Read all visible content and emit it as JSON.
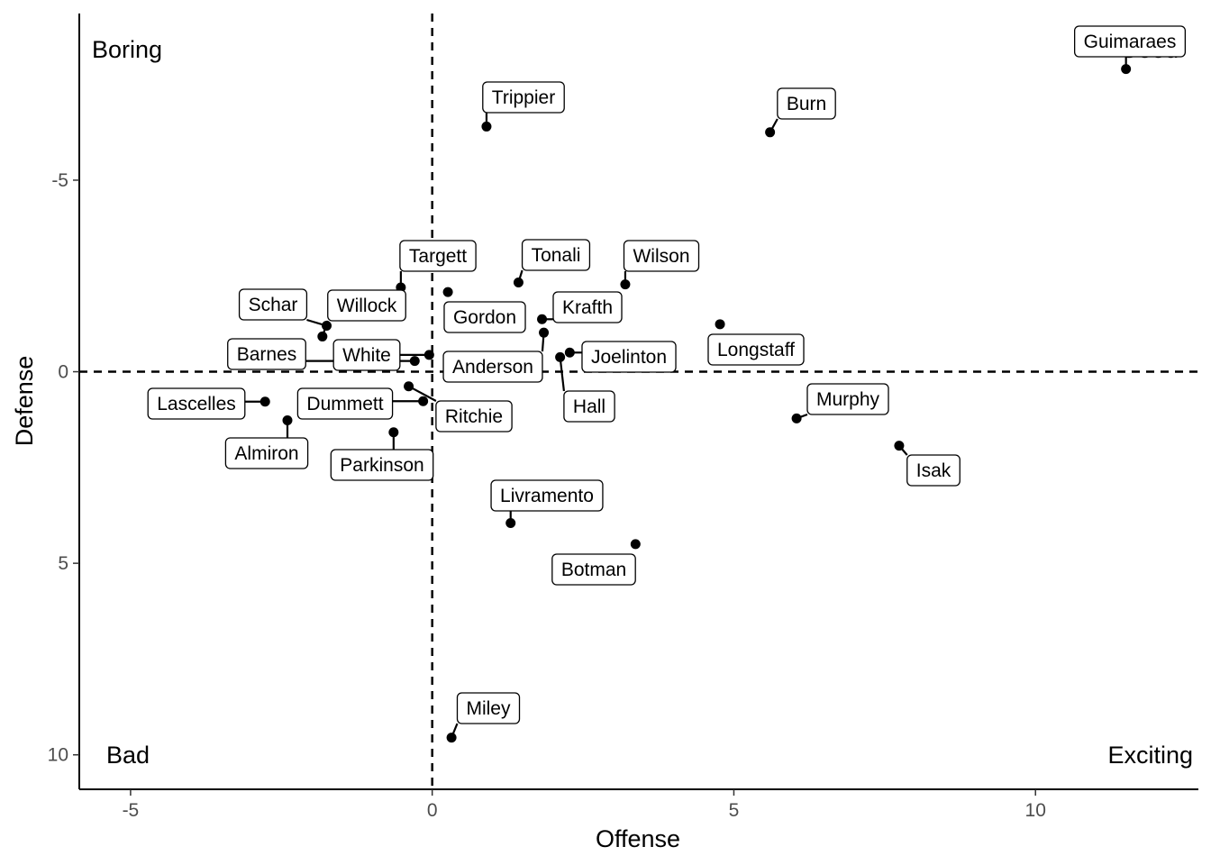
{
  "chart_data": {
    "type": "scatter",
    "xlabel": "Offense",
    "ylabel": "Defense",
    "x_ticks": [
      -5,
      0,
      5,
      10
    ],
    "x_tick_labels": [
      "-5",
      "0",
      "5",
      "10"
    ],
    "y_ticks": [
      -5,
      0,
      5,
      10
    ],
    "y_tick_labels": [
      "-5",
      "0",
      "5",
      "10"
    ],
    "y_reversed": true,
    "xlim": [
      -5.85,
      12.7
    ],
    "ylim": [
      -9.35,
      10.9
    ],
    "reference_lines": {
      "x": 0,
      "y": 0,
      "style": "dashed"
    },
    "grid": false,
    "quadrant_labels": {
      "top_left": "Boring",
      "top_right": "Good",
      "bottom_left": "Bad",
      "bottom_right": "Exciting"
    },
    "points": [
      {
        "label": "Guimaraes",
        "x": 11.5,
        "y": -7.9
      },
      {
        "label": "Trippier",
        "x": 0.9,
        "y": -6.4
      },
      {
        "label": "Burn",
        "x": 5.6,
        "y": -6.25
      },
      {
        "label": "Tonali",
        "x": 1.43,
        "y": -2.33
      },
      {
        "label": "Wilson",
        "x": 3.2,
        "y": -2.28
      },
      {
        "label": "Targett",
        "x": -0.52,
        "y": -2.2
      },
      {
        "label": "Gordon",
        "x": 0.26,
        "y": -2.08
      },
      {
        "label": "Krafth",
        "x": 1.82,
        "y": -1.37
      },
      {
        "label": "Schar",
        "x": -1.75,
        "y": -1.2
      },
      {
        "label": "Anderson",
        "x": 1.85,
        "y": -1.02
      },
      {
        "label": "Willock",
        "x": -1.82,
        "y": -0.92
      },
      {
        "label": "Longstaff",
        "x": 4.77,
        "y": -1.24
      },
      {
        "label": "Joelinton",
        "x": 2.28,
        "y": -0.5
      },
      {
        "label": "Hall",
        "x": 2.12,
        "y": -0.38
      },
      {
        "label": "White",
        "x": -0.05,
        "y": -0.44
      },
      {
        "label": "Barnes",
        "x": -0.29,
        "y": -0.28
      },
      {
        "label": "Ritchie",
        "x": -0.39,
        "y": 0.38
      },
      {
        "label": "Lascelles",
        "x": -2.77,
        "y": 0.78
      },
      {
        "label": "Dummett",
        "x": -0.15,
        "y": 0.77
      },
      {
        "label": "Almiron",
        "x": -2.4,
        "y": 1.27
      },
      {
        "label": "Murphy",
        "x": 6.04,
        "y": 1.22
      },
      {
        "label": "Parkinson",
        "x": -0.64,
        "y": 1.58
      },
      {
        "label": "Isak",
        "x": 7.74,
        "y": 1.93
      },
      {
        "label": "Livramento",
        "x": 1.3,
        "y": 3.95
      },
      {
        "label": "Botman",
        "x": 3.37,
        "y": 4.5
      },
      {
        "label": "Miley",
        "x": 0.32,
        "y": 9.55
      }
    ]
  }
}
